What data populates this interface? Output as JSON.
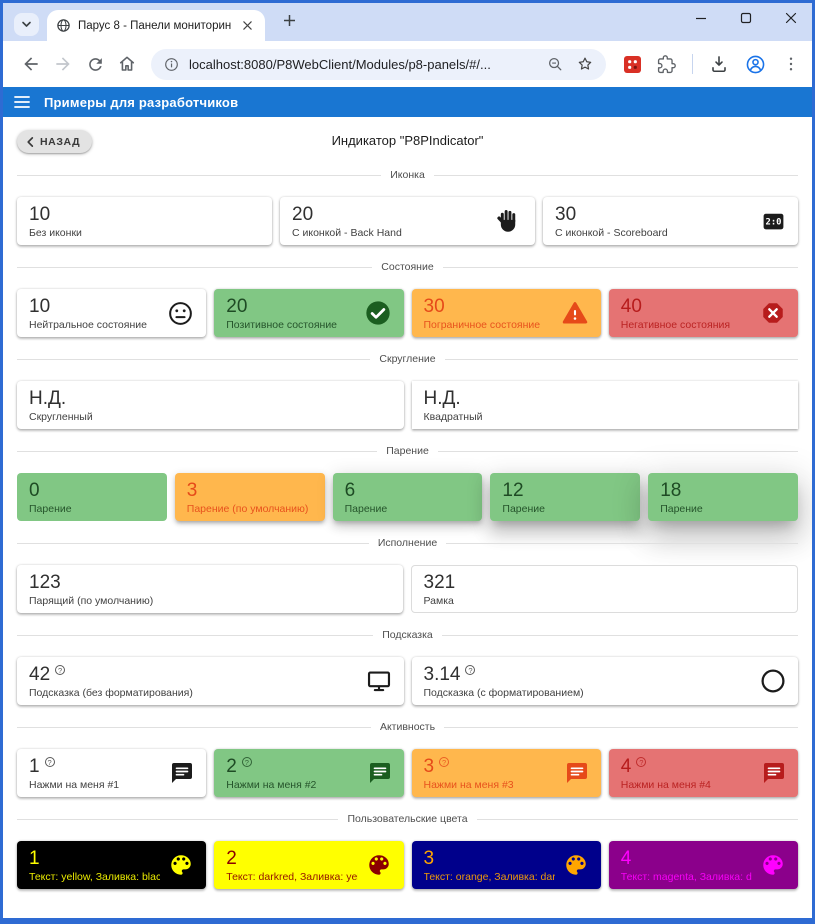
{
  "help_badge_char": "?",
  "colors": {
    "frame_blue": "#2e6bd3",
    "titlebar_bg": "#cfdcf6",
    "appbar_blue": "#1976d2",
    "icon_default": "#1c1c1c",
    "styles": {
      "green": {
        "bg": "#81c784",
        "fg": "#1e4b24",
        "icon": "#1b5e20"
      },
      "orange": {
        "bg": "#ffb74d",
        "fg": "#e64a19",
        "icon": "#e64a19"
      },
      "red": {
        "bg": "#e57373",
        "fg": "#b71c1c",
        "icon": "#b71c1c"
      }
    }
  },
  "browser": {
    "tab_title": "Парус 8 - Панели мониторинг",
    "url": "localhost:8080/P8WebClient/Modules/p8-panels/#/..."
  },
  "app_bar": {
    "title": "Примеры для разработчиков"
  },
  "page": {
    "back_label": "НАЗАД",
    "title": "Индикатор \"P8PIndicator\""
  },
  "icons_text": {
    "scoreboard": "2:0"
  },
  "sections": [
    {
      "title": "Иконка",
      "cards": [
        {
          "value": "10",
          "label": "Без иконки"
        },
        {
          "value": "20",
          "label": "С иконкой - Back Hand",
          "icon": "back-hand"
        },
        {
          "value": "30",
          "label": "С иконкой - Scoreboard",
          "icon": "scoreboard"
        }
      ]
    },
    {
      "title": "Состояние",
      "cards": [
        {
          "value": "10",
          "label": "Нейтральное состояние",
          "icon": "sentiment-neutral"
        },
        {
          "value": "20",
          "label": "Позитивное состояние",
          "icon": "check-circle",
          "style": "green"
        },
        {
          "value": "30",
          "label": "Пограничное состояние",
          "icon": "warning",
          "style": "orange"
        },
        {
          "value": "40",
          "label": "Негативное состояния",
          "icon": "dangerous",
          "style": "red"
        }
      ]
    },
    {
      "title": "Скругление",
      "cards": [
        {
          "value": "Н.Д.",
          "label": "Скругленный"
        },
        {
          "value": "Н.Д.",
          "label": "Квадратный",
          "square": true
        }
      ]
    },
    {
      "title": "Парение",
      "cards": [
        {
          "value": "0",
          "label": "Парение",
          "style": "green",
          "elevation": 0
        },
        {
          "value": "3",
          "label": "Парение (по умолчанию)",
          "style": "orange",
          "elevation": 3
        },
        {
          "value": "6",
          "label": "Парение",
          "style": "green",
          "elevation": 6
        },
        {
          "value": "12",
          "label": "Парение",
          "style": "green",
          "elevation": 12
        },
        {
          "value": "18",
          "label": "Парение",
          "style": "green",
          "elevation": 18
        }
      ]
    },
    {
      "title": "Исполнение",
      "cards": [
        {
          "value": "123",
          "label": "Парящий (по умолчанию)"
        },
        {
          "value": "321",
          "label": "Рамка",
          "variant": "outlined"
        }
      ]
    },
    {
      "title": "Подсказка",
      "cards": [
        {
          "value": "42",
          "label": "Подсказка (без форматирования)",
          "icon": "monitor",
          "help": true
        },
        {
          "value": "3.14",
          "label": "Подсказка (с форматированием)",
          "icon": "circle-outline",
          "help": true
        }
      ]
    },
    {
      "title": "Активность",
      "cards": [
        {
          "value": "1",
          "label": "Нажми на меня #1",
          "icon": "chat",
          "help": true,
          "clickable": true
        },
        {
          "value": "2",
          "label": "Нажми на меня #2",
          "icon": "chat",
          "style": "green",
          "help": true,
          "clickable": true
        },
        {
          "value": "3",
          "label": "Нажми на меня #3",
          "icon": "chat",
          "style": "orange",
          "help": true,
          "clickable": true
        },
        {
          "value": "4",
          "label": "Нажми на меня #4",
          "icon": "chat",
          "style": "red",
          "help": true,
          "clickable": true
        }
      ]
    },
    {
      "title": "Пользовательские цвета",
      "cards": [
        {
          "value": "1",
          "label": "Текст: yellow, Заливка: black",
          "icon": "palette",
          "bg": "#000000",
          "fg": "#ffff00"
        },
        {
          "value": "2",
          "label": "Текст: darkred, Заливка: yellow",
          "icon": "palette",
          "bg": "#ffff00",
          "fg": "#8b0000"
        },
        {
          "value": "3",
          "label": "Текст: orange, Заливка: darkblue",
          "icon": "palette",
          "bg": "#00008b",
          "fg": "#ffa500"
        },
        {
          "value": "4",
          "label": "Текст: magenta, Заливка: darkmage...",
          "icon": "palette",
          "bg": "#8b008b",
          "fg": "#ff00ff"
        }
      ]
    }
  ]
}
